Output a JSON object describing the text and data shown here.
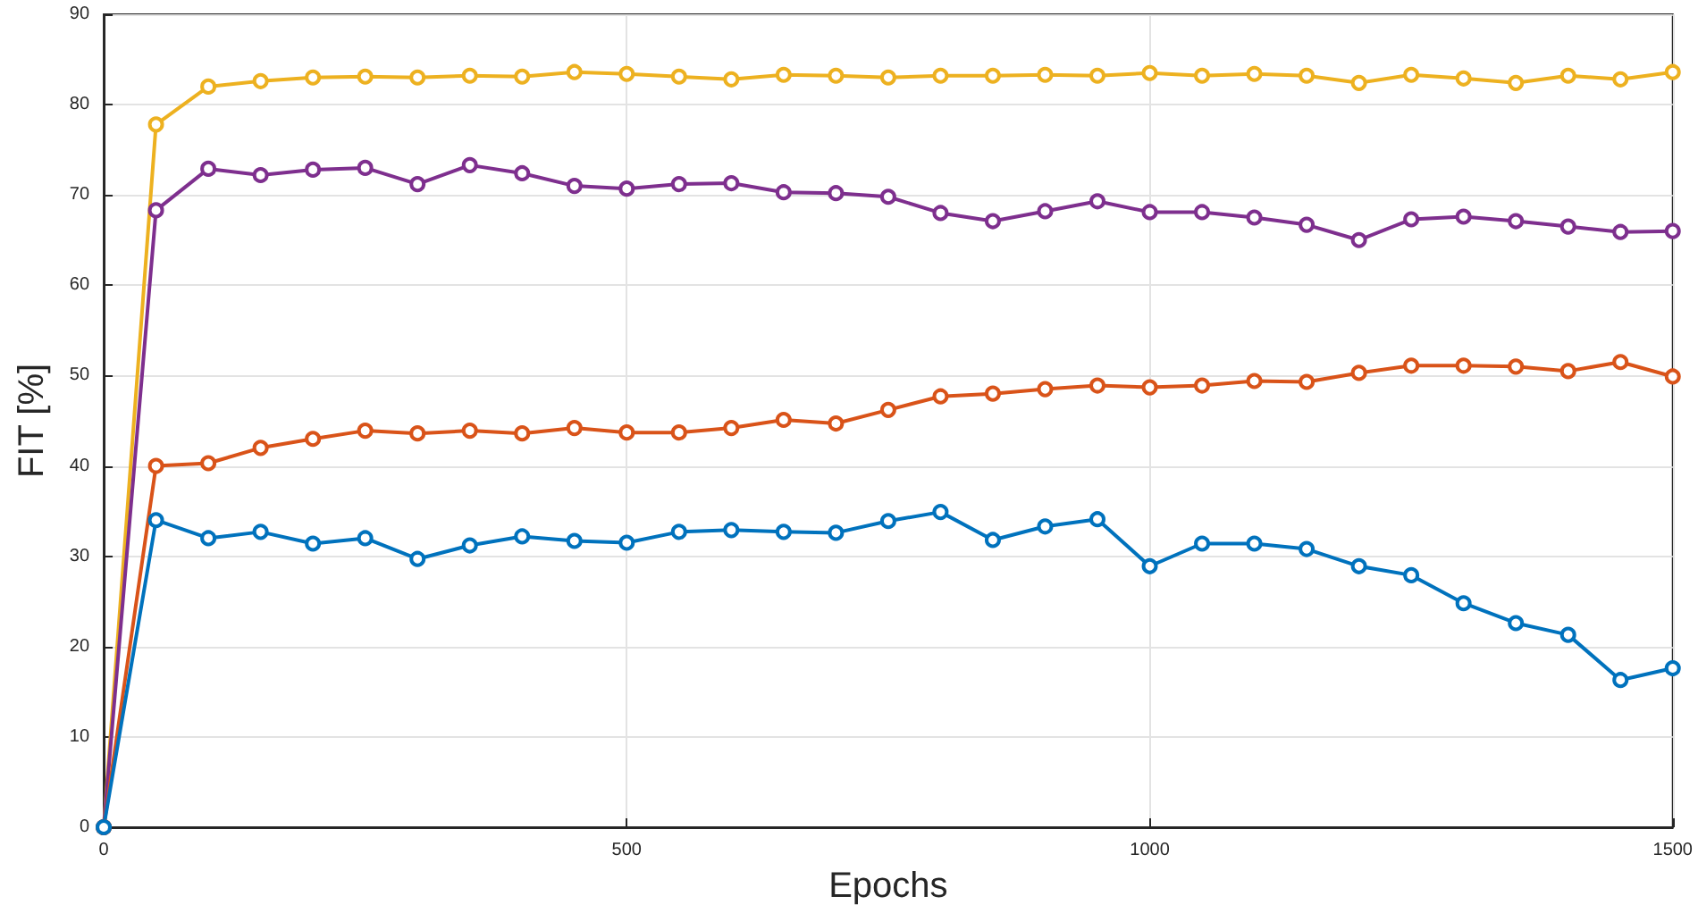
{
  "chart_data": {
    "type": "line",
    "xlabel": "Epochs",
    "ylabel": "FIT [%]",
    "x": [
      0,
      50,
      100,
      150,
      200,
      250,
      300,
      350,
      400,
      450,
      500,
      550,
      600,
      650,
      700,
      750,
      800,
      850,
      900,
      950,
      1000,
      1050,
      1100,
      1150,
      1200,
      1250,
      1300,
      1350,
      1400,
      1450,
      1500
    ],
    "series": [
      {
        "color": "#edb120",
        "values": [
          0,
          77.8,
          82,
          82.6,
          83,
          83.1,
          83,
          83.2,
          83.1,
          83.6,
          83.4,
          83.1,
          82.8,
          83.3,
          83.2,
          83.0,
          83.2,
          83.2,
          83.3,
          83.2,
          83.5,
          83.2,
          83.4,
          83.2,
          82.4,
          83.3,
          82.9,
          82.4,
          83.2,
          82.8,
          83.6
        ]
      },
      {
        "color": "#7e2f8e",
        "values": [
          0,
          68.3,
          72.9,
          72.2,
          72.8,
          73.0,
          71.2,
          73.3,
          72.4,
          71.0,
          70.7,
          71.2,
          71.3,
          70.3,
          70.2,
          69.8,
          68.0,
          67.1,
          68.2,
          69.3,
          68.1,
          68.1,
          67.5,
          66.7,
          65.0,
          67.3,
          67.6,
          67.1,
          66.5,
          65.9,
          66.0
        ]
      },
      {
        "color": "#d95319",
        "values": [
          0,
          40.0,
          40.3,
          42.0,
          43.0,
          43.9,
          43.6,
          43.9,
          43.6,
          44.2,
          43.7,
          43.7,
          44.2,
          45.1,
          44.7,
          46.2,
          47.7,
          48.0,
          48.5,
          48.9,
          48.7,
          48.9,
          49.4,
          49.3,
          50.3,
          51.1,
          51.1,
          51.0,
          50.5,
          51.5,
          49.9
        ]
      },
      {
        "color": "#0072bd",
        "values": [
          0,
          34.0,
          32.0,
          32.7,
          31.4,
          32.0,
          29.7,
          31.2,
          32.2,
          31.7,
          31.5,
          32.7,
          32.9,
          32.7,
          32.6,
          33.9,
          34.9,
          31.8,
          33.3,
          34.1,
          28.9,
          31.4,
          31.4,
          30.8,
          28.9,
          27.9,
          24.8,
          22.6,
          21.3,
          16.3,
          17.6
        ]
      }
    ],
    "xlim": [
      0,
      1500
    ],
    "xticks": [
      0,
      500,
      1000,
      1500
    ],
    "ylim": [
      0,
      90
    ],
    "yticks": [
      0,
      10,
      20,
      30,
      40,
      50,
      60,
      70,
      80,
      90
    ],
    "grid": true,
    "marker": "circle",
    "line_style": "solid"
  }
}
